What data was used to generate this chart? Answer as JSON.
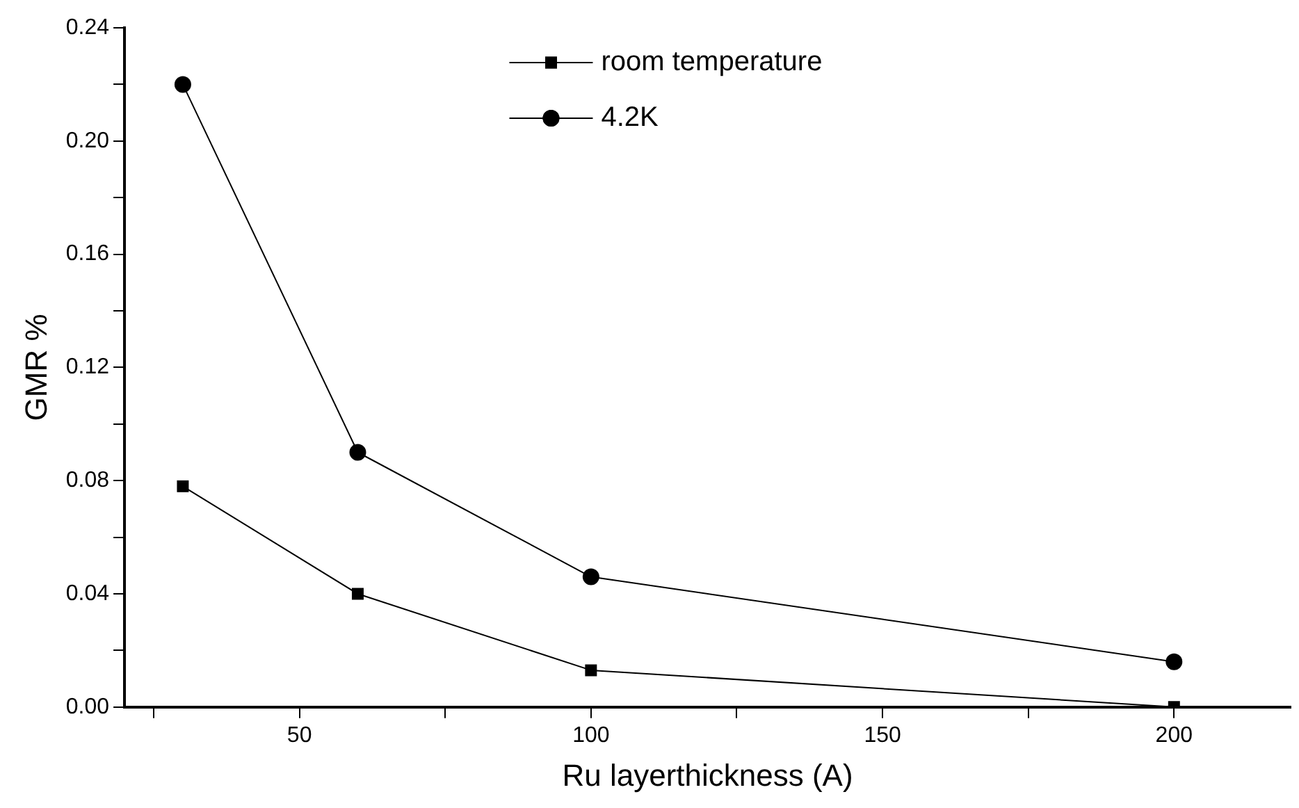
{
  "chart_data": {
    "type": "line",
    "xlabel": "Ru layerthickness (A)",
    "ylabel": "GMR %",
    "series": [
      {
        "name": "room temperature",
        "color": "#000000",
        "marker": "square",
        "x": [
          30,
          60,
          100,
          200
        ],
        "values": [
          0.078,
          0.04,
          0.013,
          0.0
        ]
      },
      {
        "name": "4.2K",
        "color": "#000000",
        "marker": "circle",
        "x": [
          30,
          60,
          100,
          200
        ],
        "values": [
          0.22,
          0.09,
          0.046,
          0.016
        ]
      }
    ],
    "xlim": [
      20,
      220
    ],
    "xticks": [
      {
        "value": 25,
        "label": null
      },
      50,
      {
        "value": 75,
        "label": null
      },
      100,
      {
        "value": 125,
        "label": null
      },
      150,
      {
        "value": 175,
        "label": null
      },
      200
    ],
    "ylim": [
      0,
      0.24
    ],
    "yticks": [
      "0.00",
      {
        "value": 0.02,
        "label": null
      },
      {
        "value": 0.04,
        "label": "0.04"
      },
      {
        "value": 0.06,
        "label": null
      },
      {
        "value": 0.08,
        "label": "0.08"
      },
      {
        "value": 0.1,
        "label": null
      },
      {
        "value": 0.12,
        "label": "0.12"
      },
      {
        "value": 0.14,
        "label": null
      },
      {
        "value": 0.16,
        "label": "0.16"
      },
      {
        "value": 0.18,
        "label": null
      },
      {
        "value": 0.2,
        "label": "0.20"
      },
      {
        "value": 0.22,
        "label": null
      },
      {
        "value": 0.24,
        "label": "0.24"
      }
    ],
    "grid": false,
    "legend": "top",
    "line_style": "solid"
  }
}
